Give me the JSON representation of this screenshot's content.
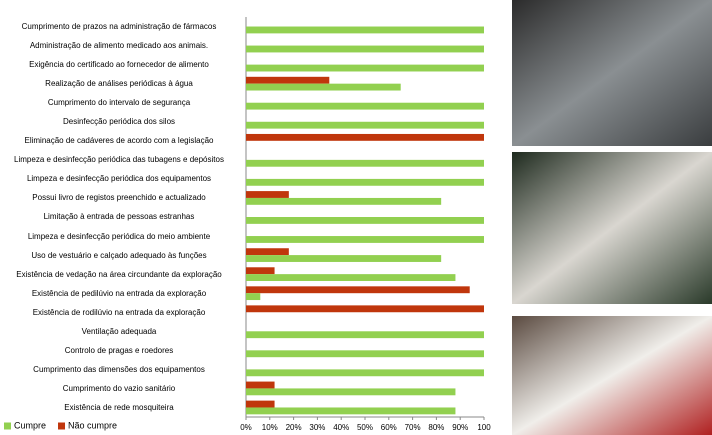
{
  "chart_data": {
    "type": "bar",
    "orientation": "horizontal",
    "categories": [
      "Cumprimento de prazos na administração de fármacos",
      "Administração de alimento medicado aos animais.",
      "Exigência do certificado ao fornecedor de alimento",
      "Realização de análises periódicas à água",
      "Cumprimento do intervalo de segurança",
      "Desinfecção periódica dos silos",
      "Eliminação de cadáveres de acordo com a legislação",
      "Limpeza e desinfecção periódica das tubagens e depósitos",
      "Limpeza e desinfecção periódica dos equipamentos",
      "Possui livro de registos preenchido e actualizado",
      "Limitação à entrada de pessoas estranhas",
      "Limpeza e desinfecção periódica do meio ambiente",
      "Uso de vestuário e calçado adequado às funções",
      "Existência de vedação na área circundante da exploração",
      "Existência de pedilúvio na entrada da exploração",
      "Existência de rodilúvio na entrada da exploração",
      "Ventilação adequada",
      "Controlo de pragas e roedores",
      "Cumprimento das dimensões dos equipamentos",
      "Cumprimento do vazio sanitário",
      "Existência de rede mosquiteira"
    ],
    "series": [
      {
        "name": "Cumpre",
        "color": "#92d050",
        "values": [
          100,
          100,
          100,
          65,
          100,
          100,
          0,
          100,
          100,
          82,
          100,
          100,
          82,
          88,
          6,
          0,
          100,
          100,
          100,
          88,
          88
        ]
      },
      {
        "name": "Não cumpre",
        "color": "#c0360c",
        "values": [
          0,
          0,
          0,
          35,
          0,
          0,
          100,
          0,
          0,
          18,
          0,
          0,
          18,
          12,
          94,
          100,
          0,
          0,
          0,
          12,
          12
        ]
      }
    ],
    "xlim": [
      0,
      100
    ],
    "xticks": [
      {
        "value": 0,
        "label": "0%"
      },
      {
        "value": 10,
        "label": "10%"
      },
      {
        "value": 20,
        "label": "20%"
      },
      {
        "value": 30,
        "label": "30%"
      },
      {
        "value": 40,
        "label": "40%"
      },
      {
        "value": 50,
        "label": "50%"
      },
      {
        "value": 60,
        "label": "60%"
      },
      {
        "value": 70,
        "label": "70%"
      },
      {
        "value": 80,
        "label": "80%"
      },
      {
        "value": 90,
        "label": "90%"
      },
      100
    ],
    "legend": "bottom-left"
  }
}
